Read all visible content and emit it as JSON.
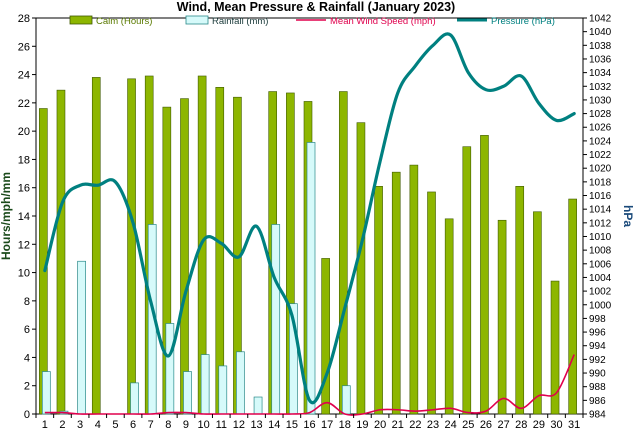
{
  "chart_data": {
    "type": "bar",
    "title": "Wind, Mean Pressure & Rainfall (January 2023)",
    "ylabel": "Hours/mph/mm",
    "y2label": "hPa",
    "ylim": [
      0,
      28
    ],
    "y2lim": [
      984,
      1042
    ],
    "categories": [
      "1",
      "2",
      "3",
      "4",
      "5",
      "6",
      "7",
      "8",
      "9",
      "10",
      "11",
      "12",
      "13",
      "14",
      "15",
      "16",
      "17",
      "18",
      "19",
      "20",
      "21",
      "22",
      "23",
      "24",
      "25",
      "26",
      "27",
      "28",
      "29",
      "30",
      "31"
    ],
    "legend_position": "top",
    "grid": false,
    "series": [
      {
        "name": "Calm (Hours)",
        "kind": "bar",
        "axis": "left",
        "color": "#8db600",
        "edge": "#3f5a00",
        "values": [
          21.6,
          22.9,
          0,
          23.8,
          0,
          23.7,
          23.9,
          21.7,
          22.3,
          23.9,
          23.1,
          22.4,
          0,
          22.8,
          22.7,
          22.1,
          11.0,
          22.8,
          20.6,
          16.1,
          17.1,
          17.6,
          15.7,
          13.8,
          18.9,
          19.7,
          13.7,
          16.1,
          14.3,
          9.4,
          15.2
        ]
      },
      {
        "name": "Rainfall (mm)",
        "kind": "bar",
        "axis": "left",
        "color": "#d6fafa",
        "edge": "#2a8a8a",
        "values": [
          3.0,
          0.2,
          10.8,
          0,
          0,
          2.2,
          13.4,
          6.4,
          3.0,
          4.2,
          3.4,
          4.4,
          1.2,
          13.4,
          7.8,
          19.2,
          0,
          2.0,
          0,
          0,
          0,
          0,
          0,
          0,
          0,
          0,
          0,
          0,
          0,
          0,
          0
        ]
      },
      {
        "name": "Mean Wind Speed (mph)",
        "kind": "line",
        "axis": "left",
        "color": "#e0004d",
        "values": [
          0.1,
          0.1,
          0.0,
          0.0,
          0.0,
          0.0,
          0.0,
          0.1,
          0.1,
          0.0,
          0.0,
          0.0,
          0.0,
          0.0,
          0.0,
          0.1,
          0.8,
          0.0,
          0.0,
          0.3,
          0.3,
          0.2,
          0.3,
          0.4,
          0.1,
          0.2,
          1.1,
          0.4,
          1.3,
          1.5,
          4.2
        ]
      },
      {
        "name": "Pressure (hPa)",
        "kind": "line",
        "axis": "right",
        "color": "#008080",
        "values": [
          1005,
          1015,
          1017.5,
          1017.5,
          1018,
          1012,
          1000.5,
          992.5,
          1002,
          1009.5,
          1009,
          1007,
          1011.5,
          1004,
          998.5,
          986,
          990,
          999.5,
          1009.5,
          1021,
          1031,
          1035,
          1038,
          1039.5,
          1034,
          1031.5,
          1032,
          1033.5,
          1029.5,
          1027,
          1028
        ]
      }
    ]
  }
}
